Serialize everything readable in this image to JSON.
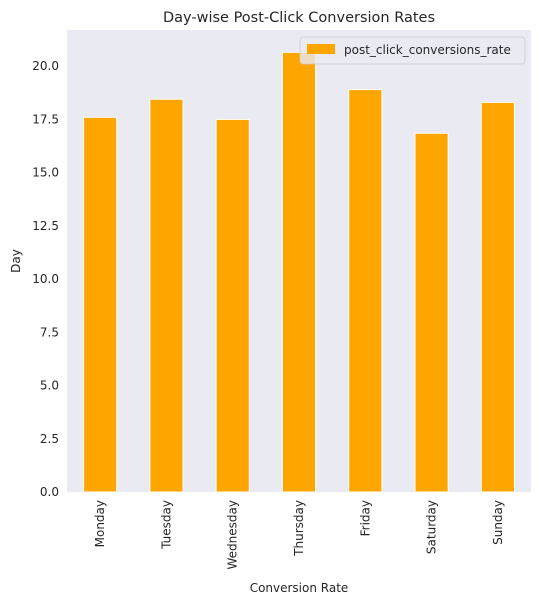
{
  "chart_data": {
    "type": "bar",
    "title": "Day-wise Post-Click Conversion Rates",
    "xlabel": "Conversion Rate",
    "ylabel": "Day",
    "categories": [
      "Monday",
      "Tuesday",
      "Wednesday",
      "Thursday",
      "Friday",
      "Saturday",
      "Sunday"
    ],
    "series": [
      {
        "name": "post_click_conversions_rate",
        "values": [
          17.6,
          18.45,
          17.5,
          20.65,
          18.9,
          16.85,
          18.3
        ],
        "color": "#FFA500"
      }
    ],
    "ylim": [
      0,
      21.7
    ],
    "yticks": [
      "0.0",
      "2.5",
      "5.0",
      "7.5",
      "10.0",
      "12.5",
      "15.0",
      "17.5",
      "20.0"
    ],
    "grid": false,
    "legend": "upper right",
    "background_color": "#EAEAF2"
  }
}
